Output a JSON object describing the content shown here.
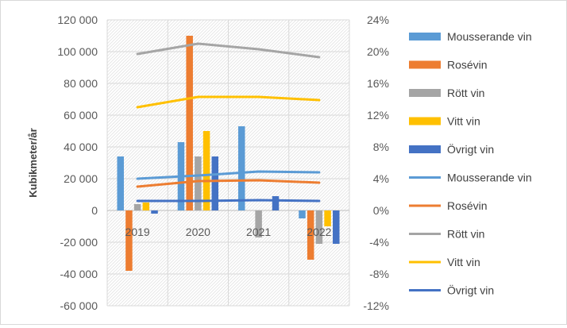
{
  "chart_data": {
    "type": "bar+line",
    "categories": [
      "2019",
      "2020",
      "2021",
      "2022"
    ],
    "ylabel": "Kubikmeter/år",
    "ylim": [
      -60000,
      120000
    ],
    "y_ticks": [
      "120 000",
      "100 000",
      "80 000",
      "60 000",
      "40 000",
      "20 000",
      "0",
      "-20 000",
      "-40 000",
      "-60 000"
    ],
    "y2lim": [
      -0.12,
      0.24
    ],
    "y2_ticks": [
      "24%",
      "20%",
      "16%",
      "12%",
      "8%",
      "4%",
      "0%",
      "-4%",
      "-8%",
      "-12%"
    ],
    "grid": true,
    "plot_background": "hatched",
    "legend_position": "right",
    "bar_series": [
      {
        "name": "Mousserande vin",
        "color": "#5b9bd5",
        "values": [
          34000,
          43000,
          53000,
          -5000
        ]
      },
      {
        "name": "Rosévin",
        "color": "#ed7d31",
        "values": [
          -38000,
          110000,
          0,
          -31000
        ]
      },
      {
        "name": "Rött vin",
        "color": "#a5a5a5",
        "values": [
          4000,
          34000,
          -17000,
          -21000
        ]
      },
      {
        "name": "Vitt vin",
        "color": "#ffc000",
        "values": [
          5000,
          50000,
          0,
          -10000
        ]
      },
      {
        "name": "Övrigt vin",
        "color": "#4472c4",
        "values": [
          -2000,
          34000,
          9000,
          -21000
        ]
      }
    ],
    "line_series": [
      {
        "name": "Mousserande vin",
        "color": "#5b9bd5",
        "values": [
          0.04,
          0.044,
          0.049,
          0.048
        ]
      },
      {
        "name": "Rosévin",
        "color": "#ed7d31",
        "values": [
          0.03,
          0.037,
          0.038,
          0.035
        ]
      },
      {
        "name": "Rött vin",
        "color": "#a5a5a5",
        "values": [
          0.197,
          0.21,
          0.203,
          0.193
        ]
      },
      {
        "name": "Vitt vin",
        "color": "#ffc000",
        "values": [
          0.13,
          0.143,
          0.143,
          0.139
        ]
      },
      {
        "name": "Övrigt vin",
        "color": "#4472c4",
        "values": [
          0.012,
          0.012,
          0.013,
          0.012
        ]
      }
    ]
  }
}
